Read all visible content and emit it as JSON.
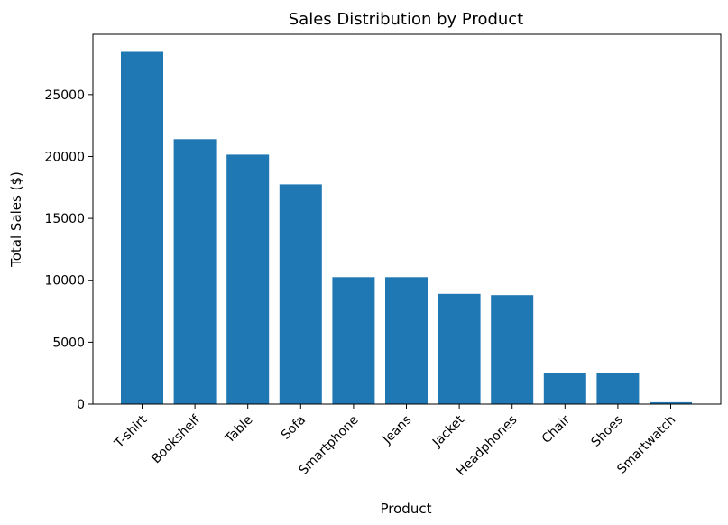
{
  "chart_data": {
    "type": "bar",
    "title": "Sales Distribution by Product",
    "xlabel": "Product",
    "ylabel": "Total Sales ($)",
    "categories": [
      "T-shirt",
      "Bookshelf",
      "Table",
      "Sofa",
      "Smartphone",
      "Jeans",
      "Jacket",
      "Headphones",
      "Chair",
      "Shoes",
      "Smartwatch"
    ],
    "values": [
      28450,
      21400,
      20150,
      17750,
      10250,
      10250,
      8900,
      8800,
      2500,
      2500,
      150
    ],
    "ylim": [
      0,
      29870
    ],
    "yticks": [
      0,
      5000,
      10000,
      15000,
      20000,
      25000
    ],
    "grid": false,
    "bar_color": "#1f77b4"
  }
}
